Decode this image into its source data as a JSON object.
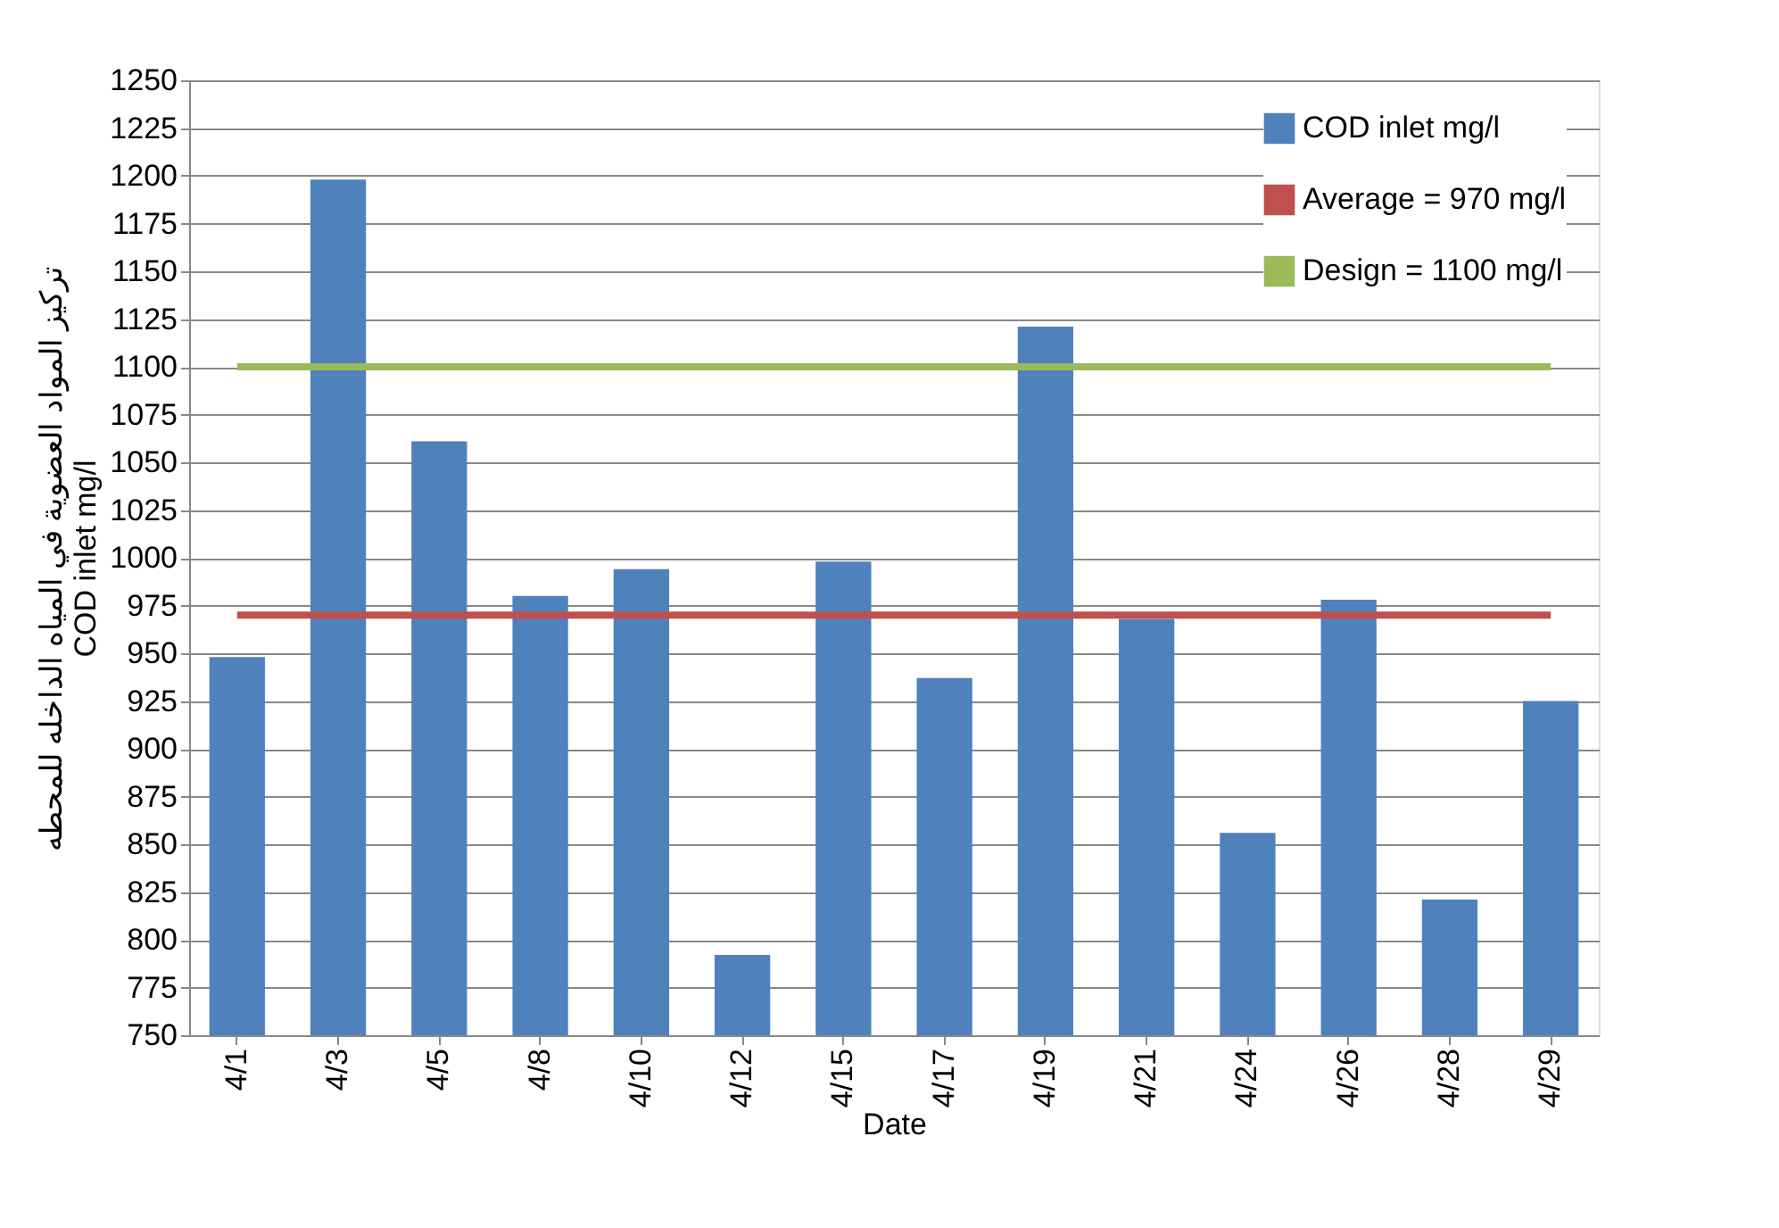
{
  "chart_data": {
    "type": "bar",
    "xlabel": "Date",
    "ylabel": "تركيز المواد العضوية في المياه الداخله للمحطه\nCOD inlet mg/l",
    "categories": [
      "4/1",
      "4/3",
      "4/5",
      "4/8",
      "4/10",
      "4/12",
      "4/15",
      "4/17",
      "4/19",
      "4/21",
      "4/24",
      "4/26",
      "4/28",
      "4/29"
    ],
    "series": [
      {
        "name": "COD inlet mg/l",
        "color": "#4f81bd",
        "values": [
          948,
          1198,
          1061,
          980,
          994,
          792,
          998,
          937,
          1121,
          968,
          856,
          978,
          821,
          925
        ]
      },
      {
        "name": "Average = 970 mg/l",
        "type": "line",
        "color": "#c0504d",
        "values": [
          970,
          970,
          970,
          970,
          970,
          970,
          970,
          970,
          970,
          970,
          970,
          970,
          970,
          970
        ]
      },
      {
        "name": "Design = 1100 mg/l",
        "type": "line",
        "color": "#9bbb59",
        "values": [
          1100,
          1100,
          1100,
          1100,
          1100,
          1100,
          1100,
          1100,
          1100,
          1100,
          1100,
          1100,
          1100,
          1100
        ]
      }
    ],
    "ylim": [
      750,
      1250
    ],
    "yticks": [
      750,
      775,
      800,
      825,
      850,
      875,
      900,
      925,
      950,
      975,
      1000,
      1025,
      1050,
      1075,
      1100,
      1125,
      1150,
      1175,
      1200,
      1225,
      1250
    ],
    "grid": "y",
    "legend": "top right"
  }
}
